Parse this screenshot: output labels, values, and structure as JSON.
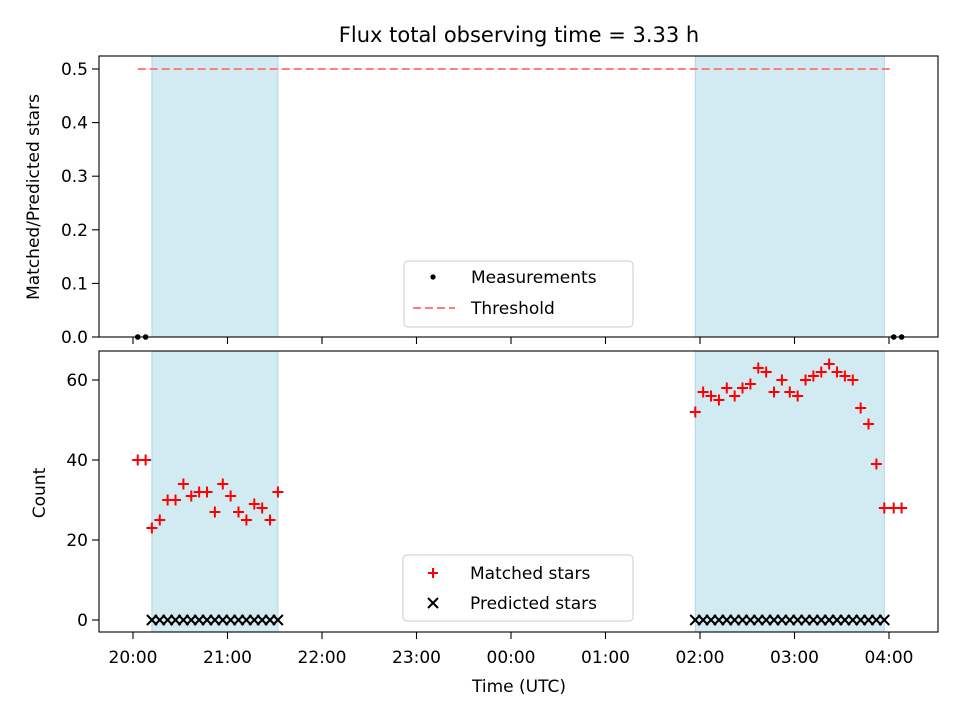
{
  "chart_data": [
    {
      "type": "scatter",
      "title": "Flux total observing time = 3.33 h",
      "ylabel": "Matched/Predicted stars",
      "xlabel": "",
      "ylim": [
        0,
        0.52
      ],
      "yticks": [
        "0.0",
        "0.1",
        "0.2",
        "0.3",
        "0.4",
        "0.5"
      ],
      "shaded_intervals": [
        [
          "20:12",
          "21:32"
        ],
        [
          "01:57",
          "03:57"
        ]
      ],
      "shade_color": "#add8e6",
      "threshold": {
        "name": "Threshold",
        "y": 0.5,
        "x_range": [
          "20:03",
          "04:03"
        ],
        "color": "#ff7f7f",
        "style": "dashed"
      },
      "series": [
        {
          "name": "Measurements",
          "marker": "dot",
          "color": "#000000",
          "x": [
            "20:03",
            "20:08",
            "04:03",
            "04:08"
          ],
          "y": [
            0,
            0,
            0,
            0
          ]
        }
      ],
      "legend": {
        "entries": [
          "Measurements",
          "Threshold"
        ],
        "position": "lower-center"
      }
    },
    {
      "type": "scatter",
      "xlabel": "Time (UTC)",
      "ylabel": "Count",
      "ylim": [
        -3,
        67
      ],
      "yticks": [
        "0",
        "20",
        "40",
        "60"
      ],
      "xticks": [
        "20:00",
        "21:00",
        "22:00",
        "23:00",
        "00:00",
        "01:00",
        "02:00",
        "03:00",
        "04:00"
      ],
      "shaded_intervals": [
        [
          "20:12",
          "21:32"
        ],
        [
          "01:57",
          "03:57"
        ]
      ],
      "shade_color": "#add8e6",
      "series": [
        {
          "name": "Matched stars",
          "marker": "plus",
          "color": "#ff0000",
          "x": [
            "20:03",
            "20:08",
            "20:12",
            "20:17",
            "20:22",
            "20:27",
            "20:32",
            "20:37",
            "20:42",
            "20:47",
            "20:52",
            "20:57",
            "21:02",
            "21:07",
            "21:12",
            "21:17",
            "21:22",
            "21:27",
            "21:32",
            "01:57",
            "02:02",
            "02:07",
            "02:12",
            "02:17",
            "02:22",
            "02:27",
            "02:32",
            "02:37",
            "02:42",
            "02:47",
            "02:52",
            "02:57",
            "03:02",
            "03:07",
            "03:12",
            "03:17",
            "03:22",
            "03:27",
            "03:32",
            "03:37",
            "03:42",
            "03:47",
            "03:52",
            "03:57",
            "04:03",
            "04:08"
          ],
          "y": [
            40,
            40,
            23,
            25,
            30,
            30,
            34,
            31,
            32,
            32,
            27,
            34,
            31,
            27,
            25,
            29,
            28,
            25,
            32,
            52,
            57,
            56,
            55,
            58,
            56,
            58,
            59,
            63,
            62,
            57,
            60,
            57,
            56,
            60,
            61,
            62,
            64,
            62,
            61,
            60,
            53,
            49,
            39,
            28,
            28,
            28
          ]
        },
        {
          "name": "Predicted stars",
          "marker": "x",
          "color": "#000000",
          "x": [
            "20:12",
            "20:17",
            "20:22",
            "20:27",
            "20:32",
            "20:37",
            "20:42",
            "20:47",
            "20:52",
            "20:57",
            "21:02",
            "21:07",
            "21:12",
            "21:17",
            "21:22",
            "21:27",
            "21:32",
            "01:57",
            "02:02",
            "02:07",
            "02:12",
            "02:17",
            "02:22",
            "02:27",
            "02:32",
            "02:37",
            "02:42",
            "02:47",
            "02:52",
            "02:57",
            "03:02",
            "03:07",
            "03:12",
            "03:17",
            "03:22",
            "03:27",
            "03:32",
            "03:37",
            "03:42",
            "03:47",
            "03:52",
            "03:57"
          ],
          "y": [
            0,
            0,
            0,
            0,
            0,
            0,
            0,
            0,
            0,
            0,
            0,
            0,
            0,
            0,
            0,
            0,
            0,
            0,
            0,
            0,
            0,
            0,
            0,
            0,
            0,
            0,
            0,
            0,
            0,
            0,
            0,
            0,
            0,
            0,
            0,
            0,
            0,
            0,
            0,
            0,
            0,
            0
          ]
        }
      ],
      "legend": {
        "entries": [
          "Matched stars",
          "Predicted stars"
        ],
        "position": "lower-center"
      }
    }
  ]
}
